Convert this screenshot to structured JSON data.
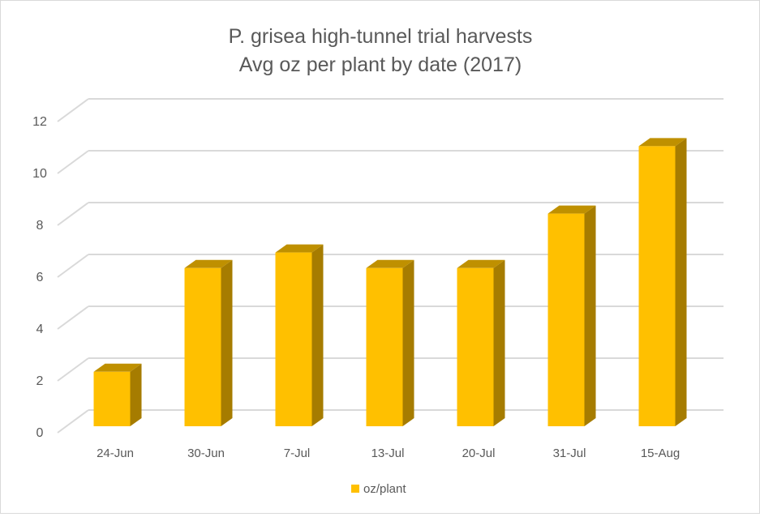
{
  "chart_data": {
    "type": "bar",
    "style": "3d-column",
    "title": [
      "P. grisea high-tunnel trial harvests",
      "Avg oz per plant by date (2017)"
    ],
    "xlabel": "",
    "ylabel": "",
    "categories": [
      "24-Jun",
      "30-Jun",
      "7-Jul",
      "13-Jul",
      "20-Jul",
      "31-Jul",
      "15-Aug"
    ],
    "series": [
      {
        "name": "oz/plant",
        "values": [
          2.1,
          6.1,
          6.7,
          6.1,
          6.1,
          8.2,
          10.8
        ],
        "color": "#ffc000",
        "side_color": "#a67c00",
        "top_color": "#bf9000"
      }
    ],
    "ylim": [
      0,
      12
    ],
    "yticks": [
      "0",
      "2",
      "4",
      "6",
      "8",
      "10",
      "12"
    ],
    "grid": true,
    "legend": "bottom-center"
  }
}
